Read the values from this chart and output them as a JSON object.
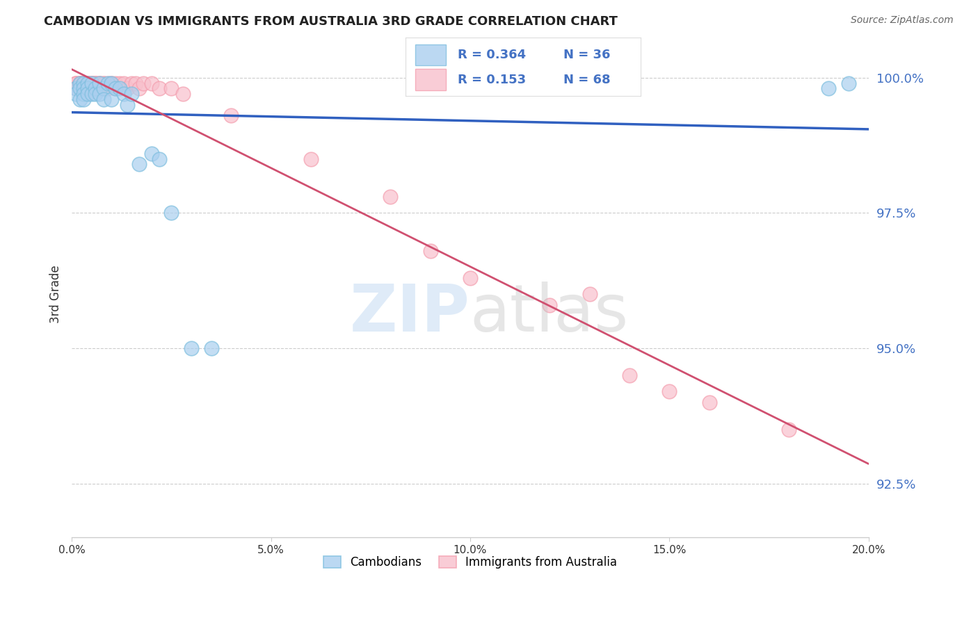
{
  "title": "CAMBODIAN VS IMMIGRANTS FROM AUSTRALIA 3RD GRADE CORRELATION CHART",
  "source": "Source: ZipAtlas.com",
  "ylabel": "3rd Grade",
  "legend_blue_r": "0.364",
  "legend_blue_n": "36",
  "legend_pink_r": "0.153",
  "legend_pink_n": "68",
  "blue_color": "#7fbfdf",
  "pink_color": "#f4a0b0",
  "blue_line_color": "#3060c0",
  "pink_line_color": "#d05070",
  "blue_fill": "#aacfef",
  "pink_fill": "#f8c0cc",
  "xmin": 0.0,
  "xmax": 0.2,
  "ymin": 0.915,
  "ymax": 1.005,
  "ytick_vals": [
    0.925,
    0.95,
    0.975,
    1.0
  ],
  "ytick_labels": [
    "92.5%",
    "95.0%",
    "97.5%",
    "100.0%"
  ],
  "xtick_vals": [
    0.0,
    0.05,
    0.1,
    0.15,
    0.2
  ],
  "xtick_labels": [
    "0.0%",
    "5.0%",
    "10.0%",
    "15.0%",
    "20.0%"
  ],
  "cambodians_x": [
    0.001,
    0.001,
    0.002,
    0.002,
    0.002,
    0.003,
    0.003,
    0.003,
    0.003,
    0.004,
    0.004,
    0.004,
    0.005,
    0.005,
    0.006,
    0.006,
    0.007,
    0.007,
    0.008,
    0.008,
    0.009,
    0.01,
    0.01,
    0.011,
    0.012,
    0.013,
    0.014,
    0.015,
    0.017,
    0.02,
    0.022,
    0.025,
    0.03,
    0.035,
    0.19,
    0.195
  ],
  "cambodians_y": [
    0.998,
    0.997,
    0.999,
    0.998,
    0.996,
    0.999,
    0.998,
    0.997,
    0.996,
    0.999,
    0.998,
    0.997,
    0.999,
    0.997,
    0.998,
    0.997,
    0.999,
    0.997,
    0.998,
    0.996,
    0.999,
    0.999,
    0.996,
    0.998,
    0.998,
    0.997,
    0.995,
    0.997,
    0.984,
    0.986,
    0.985,
    0.975,
    0.95,
    0.95,
    0.998,
    0.999
  ],
  "australia_x": [
    0.001,
    0.001,
    0.001,
    0.001,
    0.002,
    0.002,
    0.002,
    0.002,
    0.002,
    0.003,
    0.003,
    0.003,
    0.003,
    0.003,
    0.003,
    0.004,
    0.004,
    0.004,
    0.004,
    0.004,
    0.004,
    0.004,
    0.005,
    0.005,
    0.005,
    0.005,
    0.005,
    0.005,
    0.006,
    0.006,
    0.006,
    0.006,
    0.006,
    0.007,
    0.007,
    0.007,
    0.007,
    0.008,
    0.008,
    0.008,
    0.009,
    0.009,
    0.01,
    0.01,
    0.011,
    0.011,
    0.012,
    0.013,
    0.014,
    0.015,
    0.016,
    0.017,
    0.018,
    0.02,
    0.022,
    0.025,
    0.028,
    0.04,
    0.06,
    0.08,
    0.09,
    0.1,
    0.12,
    0.13,
    0.14,
    0.15,
    0.16,
    0.18
  ],
  "australia_y": [
    0.999,
    0.999,
    0.999,
    0.998,
    0.999,
    0.999,
    0.999,
    0.999,
    0.998,
    0.999,
    0.999,
    0.999,
    0.999,
    0.999,
    0.998,
    0.999,
    0.999,
    0.999,
    0.999,
    0.999,
    0.999,
    0.998,
    0.999,
    0.999,
    0.999,
    0.999,
    0.998,
    0.998,
    0.999,
    0.999,
    0.999,
    0.999,
    0.998,
    0.999,
    0.999,
    0.999,
    0.998,
    0.999,
    0.999,
    0.998,
    0.999,
    0.998,
    0.999,
    0.999,
    0.999,
    0.998,
    0.999,
    0.999,
    0.998,
    0.999,
    0.999,
    0.998,
    0.999,
    0.999,
    0.998,
    0.998,
    0.997,
    0.993,
    0.985,
    0.978,
    0.968,
    0.963,
    0.958,
    0.96,
    0.945,
    0.942,
    0.94,
    0.935
  ],
  "background_color": "#ffffff",
  "grid_color": "#cccccc"
}
